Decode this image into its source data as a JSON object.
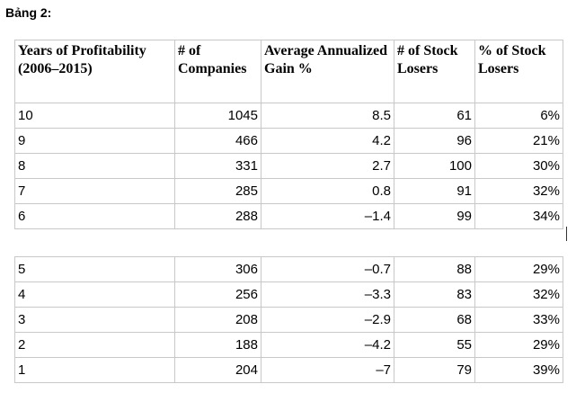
{
  "caption": "Bảng 2:",
  "headers": [
    "Years of Profitability (2006–2015)",
    "# of Companies",
    "Average Annualized Gain %",
    "# of Stock Losers",
    "% of Stock Losers"
  ],
  "rows_top": [
    [
      "10",
      "1045",
      "8.5",
      "61",
      "6%"
    ],
    [
      "9",
      "466",
      "4.2",
      "96",
      "21%"
    ],
    [
      "8",
      "331",
      "2.7",
      "100",
      "30%"
    ],
    [
      "7",
      "285",
      "0.8",
      "91",
      "32%"
    ],
    [
      "6",
      "288",
      "–1.4",
      "99",
      "34%"
    ]
  ],
  "rows_bottom": [
    [
      "5",
      "306",
      "–0.7",
      "88",
      "29%"
    ],
    [
      "4",
      "256",
      "–3.3",
      "83",
      "32%"
    ],
    [
      "3",
      "208",
      "–2.9",
      "68",
      "33%"
    ],
    [
      "2",
      "188",
      "–4.2",
      "55",
      "29%"
    ],
    [
      "1",
      "204",
      "–7",
      "79",
      "39%"
    ]
  ]
}
